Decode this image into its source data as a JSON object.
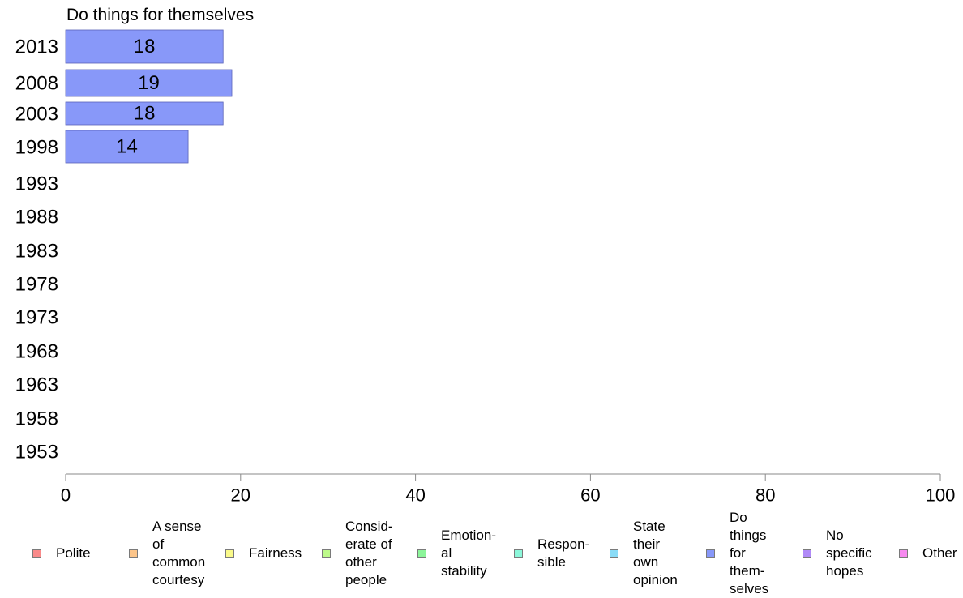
{
  "chart_data": {
    "type": "bar",
    "orientation": "horizontal",
    "title": "Do things for themselves",
    "categories": [
      "2013",
      "2008",
      "2003",
      "1998",
      "1993",
      "1988",
      "1983",
      "1978",
      "1973",
      "1968",
      "1963",
      "1958",
      "1953"
    ],
    "series": [
      {
        "name": "Do things for themselves",
        "values": [
          18,
          19,
          18,
          14,
          null,
          null,
          null,
          null,
          null,
          null,
          null,
          null,
          null
        ]
      }
    ],
    "data_labels": [
      "18",
      "19",
      "18",
      "14"
    ],
    "xlim": [
      0,
      100
    ],
    "x_ticks": [
      "0",
      "20",
      "40",
      "60",
      "80",
      "100"
    ],
    "bar_color": "#8898f9",
    "grid": false,
    "legend_placement": "bottom",
    "legend": [
      {
        "label": "Polite",
        "color": "#f98a8a"
      },
      {
        "label": "A sense\nof\ncommon\ncourtesy",
        "color": "#fcc58a"
      },
      {
        "label": "Fairness",
        "color": "#fafa8a"
      },
      {
        "label": "Consid-\nerate of\nother\npeople",
        "color": "#bdfa8a"
      },
      {
        "label": "Emotion-\nal\nstability",
        "color": "#8cf59a"
      },
      {
        "label": "Respon-\nsible",
        "color": "#8cf7da"
      },
      {
        "label": "State\ntheir\nown\nopinion",
        "color": "#8adcf7"
      },
      {
        "label": "Do\nthings\nfor\nthem-\nselves",
        "color": "#8898f9"
      },
      {
        "label": "No\nspecific\nhopes",
        "color": "#b08af7"
      },
      {
        "label": "Other",
        "color": "#f78af0"
      }
    ]
  }
}
